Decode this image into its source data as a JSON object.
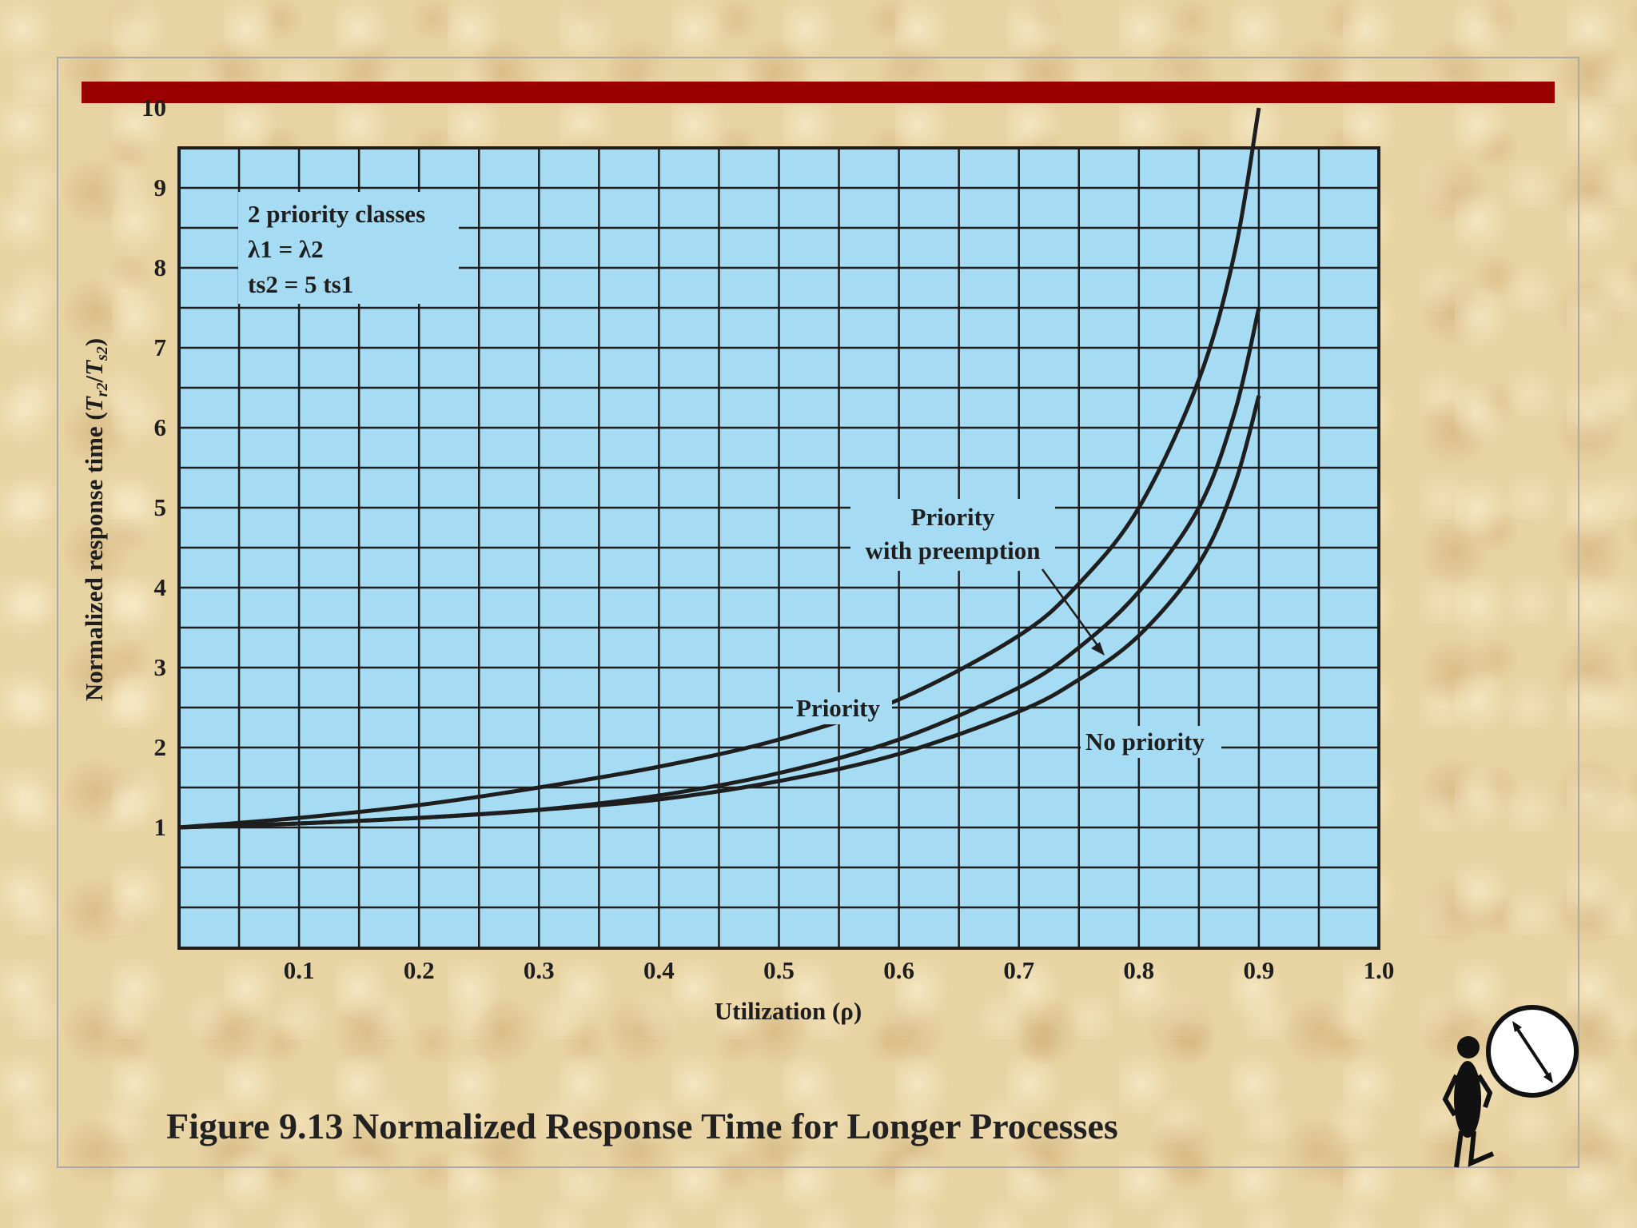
{
  "chart_data": {
    "type": "line",
    "title": "Figure 9.13 Normalized Response Time for Longer Processes",
    "xlabel": "Utilization (ρ)",
    "ylabel": "Normalized response time (T r2/T s2)",
    "xlim": [
      0,
      1.0
    ],
    "ylim": [
      0,
      10
    ],
    "xticks": [
      "0.1",
      "0.2",
      "0.3",
      "0.4",
      "0.5",
      "0.6",
      "0.7",
      "0.8",
      "0.9",
      "1.0"
    ],
    "yticks": [
      "1",
      "2",
      "3",
      "4",
      "5",
      "6",
      "7",
      "8",
      "9",
      "10"
    ],
    "grid": true,
    "legend_box": [
      "2 priority classes",
      "λ1 = λ2",
      "ts2 = 5  ts1"
    ],
    "series": [
      {
        "name": "Priority",
        "x": [
          0.0,
          0.1,
          0.2,
          0.3,
          0.4,
          0.5,
          0.6,
          0.7,
          0.75,
          0.8,
          0.85,
          0.88,
          0.9
        ],
        "y": [
          1.0,
          1.12,
          1.28,
          1.5,
          1.76,
          2.1,
          2.6,
          3.4,
          4.05,
          5.0,
          6.6,
          8.2,
          10.0
        ]
      },
      {
        "name": "Priority with preemption",
        "x": [
          0.0,
          0.1,
          0.2,
          0.3,
          0.4,
          0.5,
          0.6,
          0.7,
          0.75,
          0.8,
          0.85,
          0.88,
          0.9
        ],
        "y": [
          1.0,
          1.05,
          1.12,
          1.22,
          1.4,
          1.68,
          2.1,
          2.75,
          3.25,
          3.95,
          5.0,
          6.2,
          7.5
        ]
      },
      {
        "name": "No priority",
        "x": [
          0.0,
          0.1,
          0.2,
          0.3,
          0.4,
          0.5,
          0.6,
          0.7,
          0.75,
          0.8,
          0.85,
          0.88,
          0.9
        ],
        "y": [
          1.0,
          1.05,
          1.12,
          1.22,
          1.35,
          1.58,
          1.92,
          2.45,
          2.85,
          3.4,
          4.3,
          5.3,
          6.4
        ]
      }
    ],
    "annotations": {
      "priority": "Priority",
      "preemption_line1": "Priority",
      "preemption_line2": "with preemption",
      "no_priority": "No priority"
    }
  },
  "colors": {
    "plot_bg": "#a6dcf3",
    "grid": "#1e1e1e",
    "curve": "#1e1e1e",
    "title_bar": "#990000"
  }
}
